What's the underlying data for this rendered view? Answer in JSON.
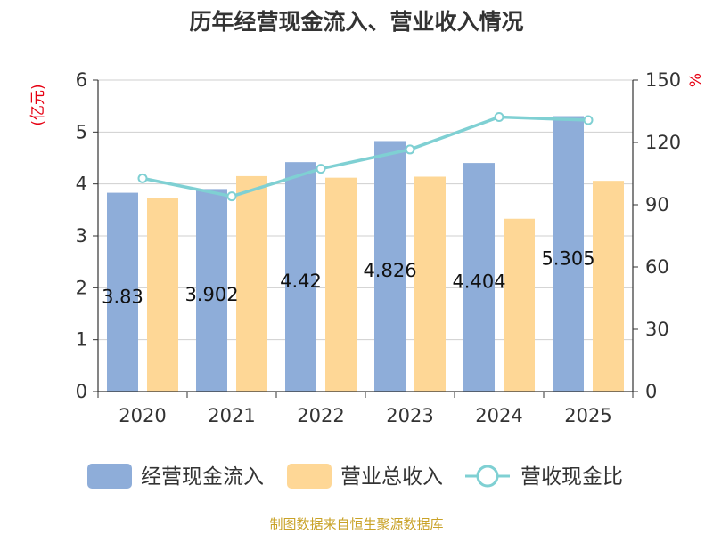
{
  "chart_data": {
    "type": "bar",
    "title": "历年经营现金流入、营业收入情况",
    "left_unit": "(亿元)",
    "right_unit": "%",
    "categories": [
      "2020",
      "2021",
      "2022",
      "2023",
      "2024",
      "2025"
    ],
    "ylim": [
      0,
      6
    ],
    "y_ticks": [
      "0",
      "1",
      "2",
      "3",
      "4",
      "5",
      "6"
    ],
    "y2lim": [
      0,
      150
    ],
    "y2_ticks": [
      "0",
      "30",
      "60",
      "90",
      "120",
      "150"
    ],
    "grid": true,
    "legend_position": "bottom",
    "series": [
      {
        "name": "经营现金流入",
        "type": "bar",
        "axis": "left",
        "color": "#8eadd9",
        "values": [
          3.83,
          3.902,
          4.42,
          4.826,
          4.404,
          5.305
        ],
        "labels": [
          "3.83",
          "3.902",
          "4.42",
          "4.826",
          "4.404",
          "5.305"
        ]
      },
      {
        "name": "营业总收入",
        "type": "bar",
        "axis": "left",
        "color": "#fed796",
        "values": [
          3.73,
          4.15,
          4.12,
          4.14,
          3.33,
          4.06
        ]
      },
      {
        "name": "营收现金比",
        "type": "line",
        "axis": "right",
        "color": "#7fd0d3",
        "values": [
          102.7,
          94.0,
          107.3,
          116.6,
          132.2,
          130.7
        ]
      }
    ],
    "source": "制图数据来自恒生聚源数据库"
  }
}
